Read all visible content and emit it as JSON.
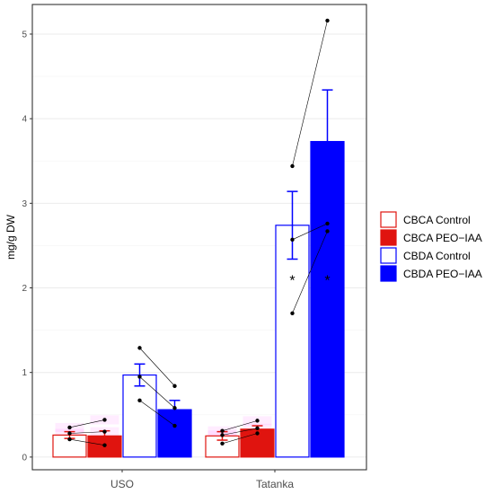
{
  "chart_data": {
    "type": "bar",
    "ylabel": "mg/g DW",
    "xlabel": "",
    "ylim": [
      -0.15,
      5.35
    ],
    "yticks": [
      0,
      1,
      2,
      3,
      4,
      5
    ],
    "grid": true,
    "legend_position": "right",
    "categories": [
      "USO",
      "Tatanka"
    ],
    "series": [
      {
        "name": "CBCA Control",
        "color": "#e0140f",
        "filled": false,
        "values": [
          0.26,
          0.25
        ],
        "errors": [
          0.04,
          0.05
        ],
        "points": [
          [
            0.21,
            0.28,
            0.35
          ],
          [
            0.16,
            0.26,
            0.31
          ]
        ],
        "significance": [
          "",
          ""
        ]
      },
      {
        "name": "CBCA PEO−IAA",
        "color": "#e0140f",
        "filled": true,
        "values": [
          0.25,
          0.33
        ],
        "errors": [
          0.06,
          0.04
        ],
        "points": [
          [
            0.14,
            0.3,
            0.44
          ],
          [
            0.28,
            0.34,
            0.43
          ]
        ],
        "significance": [
          "",
          ""
        ]
      },
      {
        "name": "CBDA Control",
        "color": "#0000ff",
        "filled": false,
        "values": [
          0.97,
          2.74
        ],
        "errors": [
          0.13,
          0.4
        ],
        "points": [
          [
            0.67,
            0.95,
            1.29
          ],
          [
            1.7,
            2.57,
            3.44
          ]
        ],
        "significance": [
          "",
          "*"
        ]
      },
      {
        "name": "CBDA PEO−IAA",
        "color": "#0000ff",
        "filled": true,
        "values": [
          0.56,
          3.73
        ],
        "errors": [
          0.11,
          0.61
        ],
        "points": [
          [
            0.37,
            0.58,
            0.84
          ],
          [
            2.67,
            2.76,
            5.16
          ]
        ],
        "significance": [
          "",
          "*"
        ]
      }
    ]
  }
}
